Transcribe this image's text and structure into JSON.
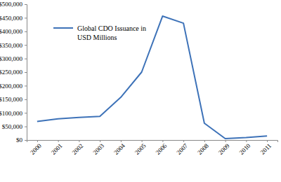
{
  "chart_data": {
    "type": "line",
    "categories": [
      "2000",
      "2001",
      "2002",
      "2003",
      "2004",
      "2005",
      "2006",
      "2007",
      "2008",
      "2009",
      "2010",
      "2011"
    ],
    "series": [
      {
        "name": "Global CDO Issuance in USD Millions",
        "color": "#3d72b8",
        "values": [
          68000,
          78000,
          83000,
          87000,
          157000,
          250000,
          456000,
          430000,
          62000,
          5000,
          9000,
          15000
        ]
      }
    ],
    "ylim": [
      0,
      500000
    ],
    "yticks": [
      {
        "value": 0,
        "label": "$0"
      },
      {
        "value": 50000,
        "label": "$50,000"
      },
      {
        "value": 100000,
        "label": "$100,000"
      },
      {
        "value": 150000,
        "label": "$150,000"
      },
      {
        "value": 200000,
        "label": "$200,000"
      },
      {
        "value": 250000,
        "label": "$250,000"
      },
      {
        "value": 300000,
        "label": "$300,000"
      },
      {
        "value": 350000,
        "label": "$350,000"
      },
      {
        "value": 400000,
        "label": "$400,000"
      },
      {
        "value": 450000,
        "label": "$450,000"
      },
      {
        "value": 500000,
        "label": "$500,000"
      }
    ],
    "grid": false,
    "legend": "upper left"
  }
}
